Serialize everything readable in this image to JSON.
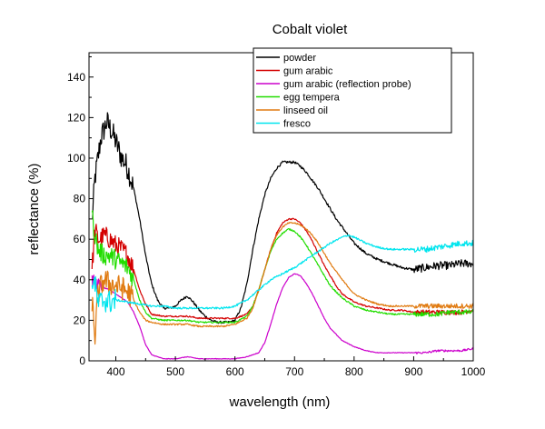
{
  "chart_data": {
    "type": "line",
    "title": "Cobalt violet",
    "xlabel": "wavelength (nm)",
    "ylabel": "reflectance (%)",
    "xlim": [
      355,
      1000
    ],
    "ylim": [
      0,
      152
    ],
    "xticks": [
      400,
      500,
      600,
      700,
      800,
      900,
      1000
    ],
    "yticks": [
      0,
      20,
      40,
      60,
      80,
      100,
      120,
      140
    ],
    "grid": false,
    "legend_position": "top-right",
    "series": [
      {
        "name": "powder",
        "color": "#000000",
        "noise_below": 430,
        "noise_amplitude": 6,
        "noise_tail": 2,
        "x": [
          360,
          365,
          370,
          375,
          380,
          385,
          390,
          395,
          400,
          405,
          410,
          415,
          420,
          430,
          440,
          450,
          460,
          470,
          480,
          490,
          500,
          510,
          520,
          530,
          540,
          550,
          560,
          570,
          580,
          590,
          600,
          610,
          620,
          630,
          640,
          650,
          660,
          670,
          680,
          690,
          700,
          710,
          720,
          730,
          740,
          750,
          760,
          770,
          780,
          790,
          800,
          820,
          840,
          860,
          880,
          900,
          920,
          940,
          960,
          980,
          1000
        ],
        "y": [
          68,
          90,
          100,
          110,
          114,
          118,
          115,
          112,
          108,
          104,
          100,
          98,
          95,
          85,
          70,
          52,
          38,
          30,
          26,
          26,
          27,
          30,
          32,
          29,
          25,
          22,
          20,
          19,
          19,
          19,
          20,
          26,
          38,
          55,
          70,
          82,
          90,
          95,
          98,
          98,
          98,
          96,
          93,
          89,
          85,
          80,
          75,
          70,
          66,
          62,
          58,
          53,
          50,
          48,
          46,
          45,
          46,
          47,
          47,
          48,
          48
        ]
      },
      {
        "name": "gum arabic",
        "color": "#d40000",
        "noise_below": 430,
        "noise_amplitude": 5,
        "noise_tail": 1.2,
        "x": [
          360,
          365,
          370,
          375,
          380,
          390,
          400,
          410,
          420,
          430,
          440,
          450,
          460,
          480,
          500,
          520,
          540,
          560,
          580,
          600,
          610,
          620,
          630,
          640,
          650,
          660,
          670,
          680,
          690,
          700,
          710,
          720,
          730,
          740,
          750,
          760,
          770,
          780,
          800,
          820,
          840,
          860,
          880,
          900,
          920,
          940,
          960,
          980,
          1000
        ],
        "y": [
          45,
          65,
          60,
          60,
          62,
          60,
          57,
          55,
          52,
          45,
          35,
          28,
          23,
          22,
          22,
          22,
          21,
          21,
          21,
          21,
          22,
          23,
          27,
          35,
          45,
          55,
          63,
          68,
          70,
          70,
          68,
          64,
          59,
          53,
          47,
          42,
          37,
          33,
          29,
          27,
          26,
          25,
          25,
          24,
          24,
          24,
          24,
          24,
          25
        ]
      },
      {
        "name": "gum arabic (reflection probe)",
        "color": "#cc00cc",
        "noise_below": 380,
        "noise_amplitude": 3,
        "noise_tail": 0.5,
        "x": [
          360,
          370,
          380,
          390,
          400,
          410,
          420,
          430,
          440,
          450,
          460,
          470,
          480,
          500,
          520,
          540,
          560,
          580,
          600,
          620,
          640,
          650,
          660,
          670,
          680,
          690,
          700,
          710,
          720,
          730,
          740,
          750,
          760,
          780,
          800,
          820,
          840,
          860,
          880,
          900,
          920,
          940,
          960,
          980,
          1000
        ],
        "y": [
          40,
          38,
          36,
          35,
          33,
          31,
          29,
          24,
          17,
          8,
          3,
          2,
          1,
          1,
          2,
          1,
          1,
          1,
          1,
          2,
          4,
          9,
          18,
          28,
          36,
          41,
          43,
          42,
          38,
          33,
          27,
          21,
          16,
          10,
          7,
          5,
          4,
          4,
          4,
          4,
          4,
          5,
          5,
          5,
          6
        ]
      },
      {
        "name": "egg tempera",
        "color": "#22dd00",
        "noise_below": 430,
        "noise_amplitude": 5,
        "noise_tail": 1.2,
        "x": [
          360,
          365,
          370,
          380,
          390,
          400,
          410,
          420,
          430,
          440,
          450,
          460,
          480,
          500,
          520,
          540,
          560,
          580,
          600,
          620,
          630,
          640,
          650,
          660,
          670,
          680,
          690,
          700,
          710,
          720,
          730,
          740,
          750,
          760,
          780,
          800,
          820,
          840,
          860,
          880,
          900,
          920,
          940,
          960,
          980,
          1000
        ],
        "y": [
          72,
          62,
          55,
          52,
          52,
          50,
          48,
          46,
          40,
          30,
          24,
          21,
          20,
          20,
          20,
          19,
          19,
          19,
          19,
          22,
          27,
          35,
          45,
          54,
          60,
          63,
          65,
          64,
          61,
          57,
          52,
          47,
          42,
          37,
          31,
          27,
          25,
          24,
          23,
          23,
          23,
          23,
          23,
          24,
          24,
          24
        ]
      },
      {
        "name": "linseed oil",
        "color": "#e07a10",
        "noise_below": 430,
        "noise_amplitude": 6,
        "noise_tail": 1.2,
        "x": [
          360,
          365,
          370,
          380,
          390,
          400,
          410,
          420,
          430,
          440,
          450,
          460,
          480,
          500,
          520,
          540,
          560,
          580,
          600,
          620,
          630,
          640,
          650,
          660,
          670,
          680,
          690,
          700,
          710,
          720,
          730,
          740,
          750,
          760,
          780,
          800,
          820,
          840,
          860,
          880,
          900,
          920,
          940,
          960,
          980,
          1000
        ],
        "y": [
          30,
          12,
          33,
          40,
          38,
          37,
          36,
          34,
          30,
          24,
          20,
          19,
          18,
          18,
          18,
          17,
          17,
          17,
          18,
          21,
          26,
          35,
          45,
          55,
          62,
          66,
          68,
          68,
          67,
          65,
          62,
          58,
          53,
          48,
          40,
          33,
          30,
          28,
          27,
          27,
          27,
          27,
          27,
          27,
          27,
          27
        ]
      },
      {
        "name": "fresco",
        "color": "#00e5ee",
        "noise_below": 400,
        "noise_amplitude": 6,
        "noise_tail": 1.5,
        "x": [
          360,
          365,
          370,
          380,
          390,
          400,
          420,
          440,
          460,
          480,
          500,
          520,
          540,
          560,
          580,
          600,
          620,
          640,
          660,
          680,
          700,
          720,
          740,
          760,
          780,
          790,
          800,
          820,
          840,
          860,
          880,
          900,
          920,
          940,
          960,
          980,
          1000
        ],
        "y": [
          40,
          38,
          28,
          30,
          29,
          30,
          29,
          28,
          27,
          27,
          26,
          26,
          26,
          26,
          26,
          27,
          30,
          35,
          40,
          43,
          46,
          50,
          54,
          58,
          61,
          62,
          61,
          58,
          56,
          55,
          55,
          55,
          55,
          56,
          57,
          58,
          58
        ]
      }
    ]
  }
}
